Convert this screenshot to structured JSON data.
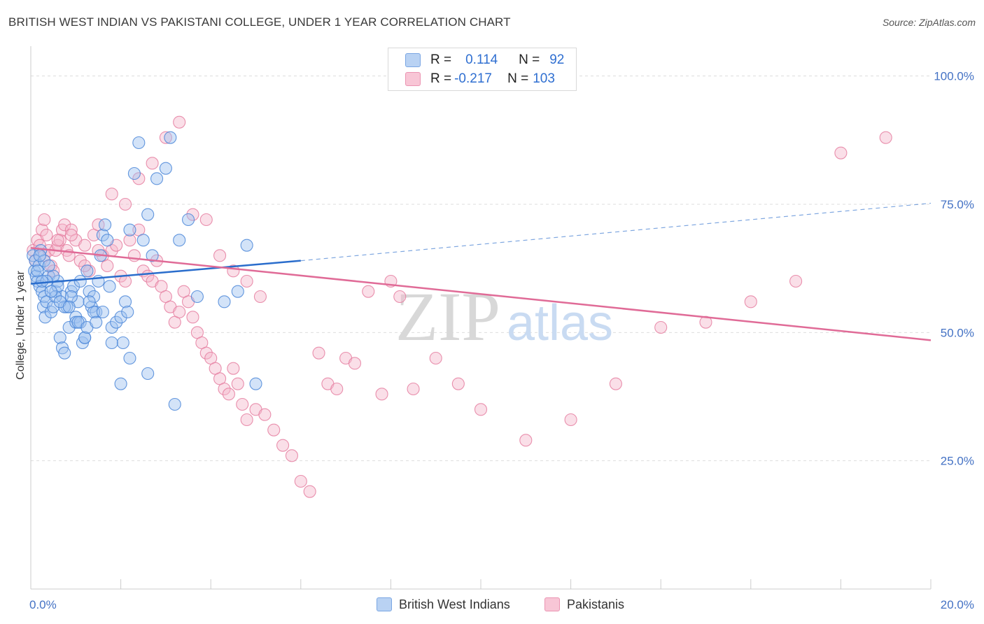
{
  "title": "BRITISH WEST INDIAN VS PAKISTANI COLLEGE, UNDER 1 YEAR CORRELATION CHART",
  "source": "Source: ZipAtlas.com",
  "watermark": {
    "zip": "ZIP",
    "atlas": "atlas"
  },
  "legend": {
    "row1": {
      "r_label": "R =",
      "r_value": "0.114",
      "n_label": "N =",
      "n_value": "92"
    },
    "row2": {
      "r_label": "R =",
      "r_value": "-0.217",
      "n_label": "N =",
      "n_value": "103"
    }
  },
  "colors": {
    "blue_fill": "#9dc0ef",
    "blue_stroke": "#4a86d8",
    "blue_line": "#2a6dcc",
    "pink_fill": "#f5b8cc",
    "pink_stroke": "#e57ea0",
    "pink_line": "#e06b97",
    "axis_text": "#4472c4",
    "grid": "#dddddd"
  },
  "chart_data": {
    "type": "scatter",
    "title": "BRITISH WEST INDIAN VS PAKISTANI COLLEGE, UNDER 1 YEAR CORRELATION CHART",
    "xlabel": "",
    "ylabel": "College, Under 1 year",
    "xlim": [
      0,
      20
    ],
    "ylim": [
      0,
      105
    ],
    "x_tick_labels": [
      "0.0%",
      "20.0%"
    ],
    "y_tick_labels": [
      "100.0%",
      "75.0%",
      "50.0%",
      "25.0%"
    ],
    "y_ticks": [
      100,
      75,
      50,
      25
    ],
    "grid": "horizontal dashed",
    "legend_position": "top-center",
    "series": [
      {
        "name": "British West Indians",
        "r": 0.114,
        "n": 92,
        "trend": {
          "x0": 0.0,
          "y0": 59.5,
          "x1": 6.0,
          "y1": 64.0,
          "dashed_to_x": 20.0,
          "dashed_to_y": 75.2
        },
        "x": [
          0.05,
          0.08,
          0.1,
          0.12,
          0.15,
          0.18,
          0.2,
          0.22,
          0.25,
          0.28,
          0.3,
          0.32,
          0.35,
          0.4,
          0.45,
          0.5,
          0.55,
          0.6,
          0.65,
          0.7,
          0.75,
          0.8,
          0.85,
          0.9,
          0.95,
          1.0,
          1.05,
          1.1,
          1.15,
          1.2,
          1.25,
          1.3,
          1.35,
          1.4,
          1.45,
          1.5,
          1.55,
          1.6,
          1.65,
          1.7,
          1.75,
          1.8,
          1.9,
          2.0,
          2.05,
          2.1,
          2.15,
          2.2,
          2.3,
          2.4,
          2.5,
          2.6,
          2.7,
          2.8,
          3.0,
          3.1,
          3.3,
          3.5,
          3.7,
          0.3,
          0.5,
          0.7,
          1.0,
          1.2,
          0.4,
          0.6,
          0.9,
          1.4,
          0.2,
          0.35,
          0.55,
          0.75,
          1.1,
          1.3,
          1.6,
          2.0,
          0.15,
          0.25,
          0.45,
          0.65,
          0.85,
          1.05,
          1.25,
          1.45,
          1.8,
          2.2,
          2.6,
          3.2,
          4.3,
          4.6,
          4.8,
          5.0
        ],
        "y": [
          65,
          62,
          64,
          61,
          60,
          63,
          59,
          66,
          58,
          55,
          57,
          53,
          56,
          61,
          54,
          55,
          58,
          60,
          49,
          47,
          46,
          55,
          51,
          58,
          59,
          53,
          56,
          60,
          48,
          49,
          62,
          58,
          55,
          57,
          54,
          60,
          65,
          69,
          71,
          68,
          59,
          51,
          52,
          53,
          48,
          56,
          54,
          70,
          81,
          87,
          68,
          73,
          65,
          80,
          82,
          88,
          68,
          72,
          57,
          64,
          61,
          57,
          52,
          49,
          63,
          59,
          57,
          54,
          65,
          60,
          57,
          55,
          52,
          56,
          54,
          40,
          62,
          60,
          58,
          56,
          55,
          52,
          51,
          52,
          48,
          45,
          42,
          36,
          56,
          58,
          67,
          40
        ]
      },
      {
        "name": "Pakistanis",
        "r": -0.217,
        "n": 103,
        "trend": {
          "x0": 0.0,
          "y0": 66.5,
          "x1": 20.0,
          "y1": 48.5
        },
        "x": [
          0.05,
          0.1,
          0.15,
          0.2,
          0.25,
          0.3,
          0.35,
          0.4,
          0.45,
          0.5,
          0.55,
          0.6,
          0.65,
          0.7,
          0.75,
          0.8,
          0.85,
          0.9,
          1.0,
          1.1,
          1.2,
          1.3,
          1.4,
          1.5,
          1.6,
          1.7,
          1.8,
          1.9,
          2.0,
          2.1,
          2.2,
          2.3,
          2.4,
          2.5,
          2.6,
          2.7,
          2.8,
          2.9,
          3.0,
          3.1,
          3.2,
          3.3,
          3.4,
          3.5,
          3.6,
          3.7,
          3.8,
          3.9,
          4.0,
          4.1,
          4.2,
          4.3,
          4.4,
          4.5,
          4.6,
          4.7,
          4.8,
          5.0,
          5.2,
          5.4,
          5.6,
          5.8,
          6.0,
          6.2,
          6.4,
          6.6,
          6.8,
          7.0,
          7.2,
          7.5,
          7.8,
          8.0,
          8.2,
          8.5,
          9.0,
          9.5,
          10.0,
          11.0,
          12.0,
          13.0,
          14.0,
          15.0,
          16.0,
          17.0,
          18.0,
          19.0,
          0.3,
          0.6,
          0.9,
          1.2,
          1.5,
          1.8,
          2.1,
          2.4,
          2.7,
          3.0,
          3.3,
          3.6,
          3.9,
          4.2,
          4.5,
          4.8,
          5.1
        ],
        "y": [
          66,
          64,
          68,
          67,
          70,
          65,
          69,
          66,
          63,
          62,
          66,
          67,
          68,
          70,
          71,
          66,
          65,
          70,
          68,
          64,
          67,
          62,
          69,
          71,
          65,
          63,
          66,
          67,
          61,
          60,
          68,
          65,
          70,
          62,
          61,
          60,
          64,
          59,
          57,
          55,
          52,
          54,
          58,
          56,
          53,
          50,
          48,
          46,
          45,
          43,
          41,
          39,
          38,
          43,
          40,
          36,
          33,
          35,
          34,
          31,
          28,
          26,
          21,
          19,
          46,
          40,
          39,
          45,
          44,
          58,
          38,
          60,
          57,
          39,
          45,
          40,
          35,
          29,
          33,
          40,
          51,
          52,
          56,
          60,
          85,
          88,
          72,
          68,
          69,
          63,
          66,
          77,
          75,
          80,
          83,
          88,
          91,
          73,
          72,
          65,
          62,
          60,
          57
        ]
      }
    ]
  },
  "bottom_legend": [
    {
      "label": "British West Indians"
    },
    {
      "label": "Pakistanis"
    }
  ]
}
